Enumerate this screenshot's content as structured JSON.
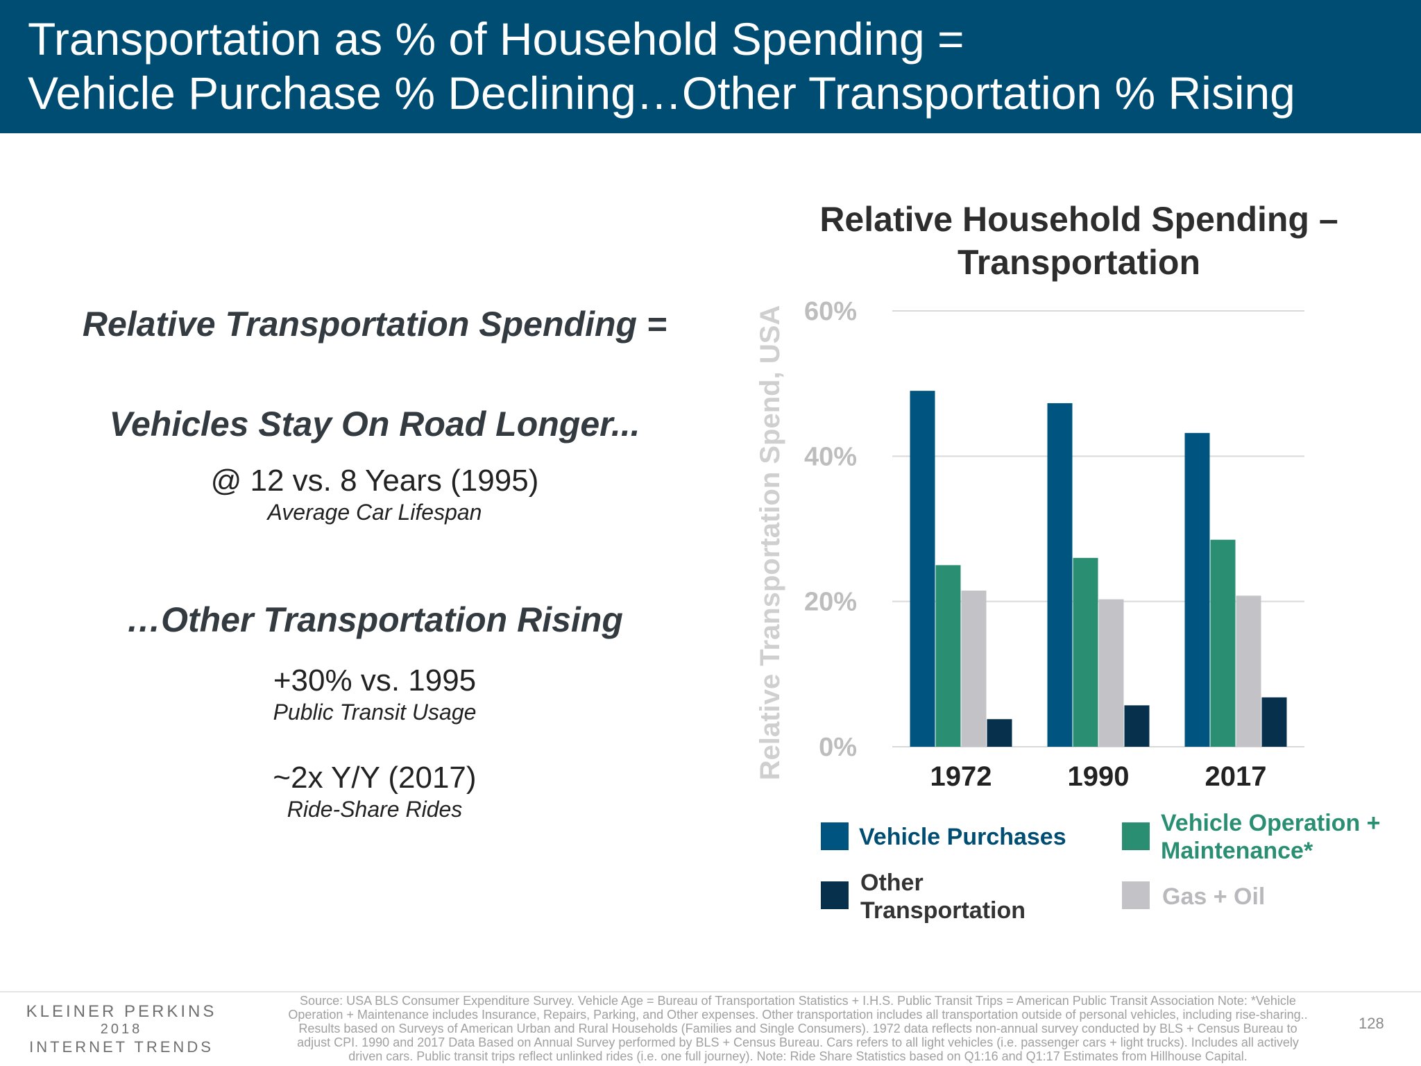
{
  "header": {
    "title_line1": "Transportation as % of Household Spending =",
    "title_line2": "Vehicle Purchase % Declining…Other Transportation % Rising"
  },
  "left": {
    "heading1": "Relative Transportation Spending =",
    "heading2": "Vehicles Stay On Road Longer...",
    "stat1": "@ 12 vs. 8 Years (1995)",
    "sub1": "Average Car Lifespan",
    "heading3": "…Other Transportation Rising",
    "stat2": "+30% vs. 1995",
    "sub2": "Public Transit Usage",
    "stat3": "~2x Y/Y (2017)",
    "sub3": "Ride-Share Rides"
  },
  "chart_data": {
    "type": "bar",
    "title": "Relative Household Spending – Transportation",
    "title_line1": "Relative Household Spending –",
    "title_line2": "Transportation",
    "ylabel": "Relative Transportation Spend, USA",
    "ylim": [
      0,
      60
    ],
    "yticks": [
      "0%",
      "20%",
      "40%",
      "60%"
    ],
    "grid": true,
    "categories": [
      "1972",
      "1990",
      "2017"
    ],
    "series": [
      {
        "name": "Vehicle Purchases",
        "color": "#005480",
        "values": [
          49,
          47.3,
          43.2
        ]
      },
      {
        "name": "Vehicle Operation + Maintenance*",
        "color": "#2a8f72",
        "values": [
          25,
          26,
          28.5
        ]
      },
      {
        "name": "Gas + Oil",
        "color": "#c3c2c6",
        "values": [
          21.5,
          20.3,
          20.8
        ]
      },
      {
        "name": "Other Transportation",
        "color": "#07304d",
        "values": [
          3.8,
          5.7,
          6.8
        ]
      }
    ],
    "legend": {
      "placement": "bottom",
      "vehicle_purchases": "Vehicle Purchases",
      "vop_line1": "Vehicle Operation +",
      "vop_line2": "Maintenance*",
      "other_line1": "Other",
      "other_line2": "Transportation",
      "gas": "Gas + Oil"
    }
  },
  "footer": {
    "brand_line1": "KLEINER PERKINS",
    "brand_line2": "2018",
    "brand_line3": "INTERNET TRENDS",
    "source_lines": [
      "Source: USA BLS  Consumer Expenditure Survey. Vehicle Age = Bureau of Transportation Statistics + I.H.S. Public Transit Trips = American Public Transit Association  Note: *Vehicle",
      "Operation + Maintenance includes Insurance, Repairs, Parking, and Other expenses. Other transportation includes all transportation outside of personal vehicles, including rise-sharing..",
      "Results based on Surveys of American Urban and Rural Households (Families and Single Consumers). 1972 data reflects non-annual survey conducted by BLS + Census Bureau to",
      "adjust CPI. 1990 and 2017 Data Based on Annual Survey performed by BLS + Census Bureau. Cars refers to all light vehicles (i.e. passenger cars + light trucks). Includes all actively",
      "driven cars.  Public transit trips reflect unlinked rides (i.e. one full journey).  Note: Ride Share Statistics based on Q1:16 and Q1:17 Estimates from Hillhouse Capital."
    ],
    "page_number": "128"
  }
}
